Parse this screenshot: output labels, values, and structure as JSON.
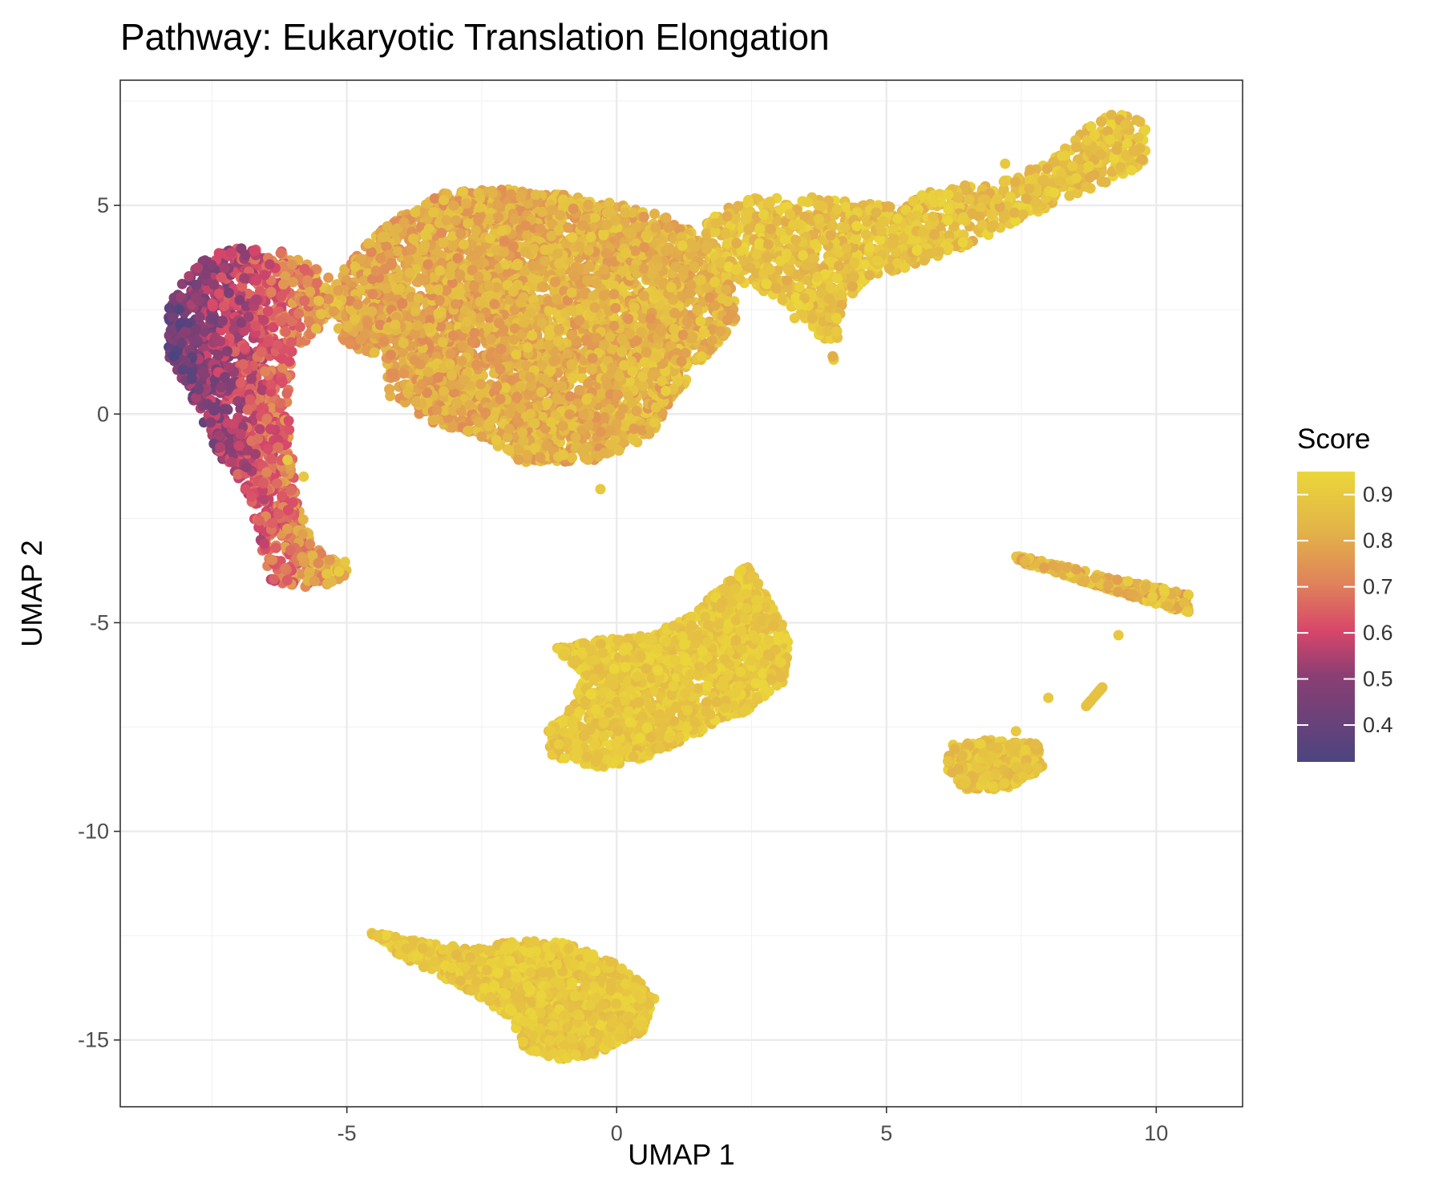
{
  "chart_data": {
    "type": "scatter",
    "title": "Pathway: Eukaryotic Translation Elongation",
    "xlabel": "UMAP 1",
    "ylabel": "UMAP 2",
    "xlim": [
      -9.2,
      11.6
    ],
    "ylim": [
      -16.6,
      8.0
    ],
    "x_ticks": [
      -5,
      0,
      5,
      10
    ],
    "y_ticks": [
      5,
      0,
      -5,
      -10,
      -15
    ],
    "x_tick_labels": [
      "-5",
      "0",
      "5",
      "10"
    ],
    "y_tick_labels": [
      "5",
      "0",
      "-5",
      "-10",
      "-15"
    ],
    "grid": true,
    "legend": {
      "title": "Score",
      "placement": "right",
      "type": "colorbar",
      "range": [
        0.32,
        0.95
      ],
      "ticks": [
        0.9,
        0.8,
        0.7,
        0.6,
        0.5,
        0.4
      ],
      "tick_labels": [
        "0.9",
        "0.8",
        "0.7",
        "0.6",
        "0.5",
        "0.4"
      ],
      "colors": [
        "#4c4480",
        "#8b3f73",
        "#d7466a",
        "#e0845a",
        "#e2b448",
        "#ebd63a"
      ]
    },
    "clusters": [
      {
        "name": "main-body",
        "x": [
          -5.0,
          1.6
        ],
        "y": [
          -1.3,
          5.4
        ],
        "score": [
          0.72,
          0.95
        ]
      },
      {
        "name": "main-tail",
        "x": [
          1.6,
          9.8
        ],
        "y": [
          2.8,
          7.2
        ],
        "score": [
          0.8,
          0.95
        ]
      },
      {
        "name": "left-arc",
        "x": [
          -8.3,
          -5.0
        ],
        "y": [
          -4.2,
          4.1
        ],
        "score": [
          0.35,
          0.92
        ]
      },
      {
        "name": "center-island",
        "x": [
          -1.3,
          3.2
        ],
        "y": [
          -8.5,
          -3.5
        ],
        "score": [
          0.82,
          0.95
        ]
      },
      {
        "name": "bottom-island",
        "x": [
          -4.6,
          0.7
        ],
        "y": [
          -15.5,
          -12.3
        ],
        "score": [
          0.82,
          0.95
        ]
      },
      {
        "name": "right-island",
        "x": [
          6.1,
          7.9
        ],
        "y": [
          -9.0,
          -7.8
        ],
        "score": [
          0.82,
          0.95
        ]
      },
      {
        "name": "right-strand",
        "x": [
          7.4,
          10.6
        ],
        "y": [
          -4.8,
          -3.4
        ],
        "score": [
          0.72,
          0.95
        ]
      }
    ]
  }
}
